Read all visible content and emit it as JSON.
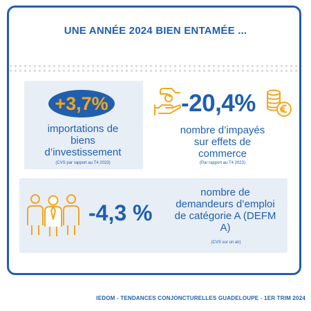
{
  "header": {
    "title": "UNE ANNÉE 2024 BIEN ENTAMÉE ..."
  },
  "indicators": [
    {
      "value": "+3,7%",
      "label_lines": [
        "importations de",
        "biens",
        "d’investissement"
      ],
      "note": "(CVS par rapport au T4 2023)",
      "icon": "none"
    },
    {
      "value": "-20,4%",
      "label_lines": [
        "nombre d’impayés",
        "sur effets de",
        "commerce"
      ],
      "note": "(Par rapport au T4 2023)",
      "icon": "hand-coins-icon"
    },
    {
      "value": "-4,3 %",
      "label_lines": [
        "nombre de",
        "demandeurs d’emploi",
        "de catégorie A (DEFM",
        "A)"
      ],
      "note": "(CVS sur un an)",
      "icon": "people-group-icon"
    }
  ],
  "footer": {
    "text": "IEDOM - TENDANCES CONJONCTURELLES GUADELOUPE - 1ER TRIM 2024"
  },
  "colors": {
    "primary": "#1f5fae",
    "accent": "#f5a51c",
    "panel": "#e8eef6"
  }
}
